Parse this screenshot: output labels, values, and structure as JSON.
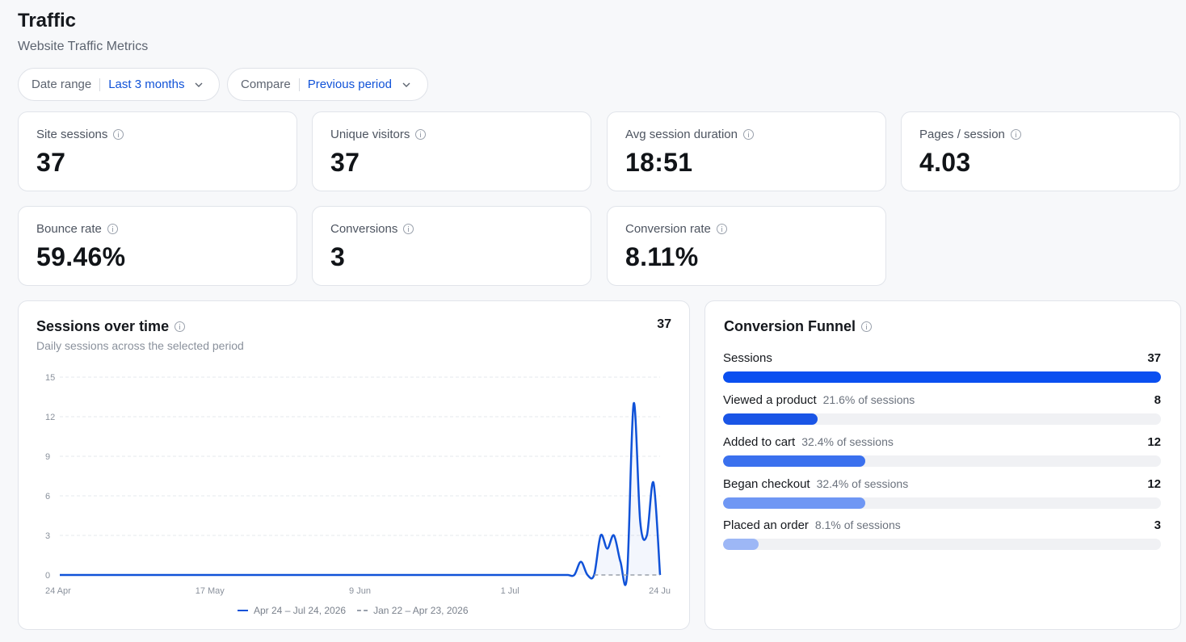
{
  "header": {
    "title": "Traffic",
    "subtitle": "Website Traffic Metrics"
  },
  "filters": {
    "date_range": {
      "label": "Date range",
      "value": "Last 3 months"
    },
    "compare": {
      "label": "Compare",
      "value": "Previous period"
    }
  },
  "stats": [
    {
      "label": "Site sessions",
      "value": "37"
    },
    {
      "label": "Unique visitors",
      "value": "37"
    },
    {
      "label": "Avg session duration",
      "value": "18:51"
    },
    {
      "label": "Pages / session",
      "value": "4.03"
    },
    {
      "label": "Bounce rate",
      "value": "59.46%"
    },
    {
      "label": "Conversions",
      "value": "3"
    },
    {
      "label": "Conversion rate",
      "value": "8.11%"
    }
  ],
  "sessions_chart": {
    "title": "Sessions over time",
    "subtitle": "Daily sessions across the selected period",
    "total": "37",
    "legend": {
      "current": "Apr 24 – Jul 24, 2026",
      "previous": "Jan 22 – Apr 23, 2026"
    }
  },
  "chart_data": {
    "type": "line",
    "title": "Sessions over time",
    "x": [
      "2026-07-12",
      "2026-07-15",
      "2026-07-16",
      "2026-07-17",
      "2026-07-18",
      "2026-07-20",
      "2026-07-21",
      "2026-07-22",
      "2026-07-23",
      "2026-07-24"
    ],
    "x_start": "2026-04-24",
    "x_end": "2026-07-24",
    "x_ticks": [
      "24 Apr",
      "17 May",
      "9 Jun",
      "1 Jul",
      "24 Ju"
    ],
    "series": [
      {
        "name": "Apr 24 – Jul 24, 2026",
        "style": "solid",
        "color": "#1052d8",
        "values": [
          1,
          3,
          2,
          3,
          1,
          13,
          4,
          3,
          7,
          0
        ]
      },
      {
        "name": "Jan 22 – Apr 23, 2026",
        "style": "dashed",
        "color": "#9aa1ac",
        "values": [
          0,
          0,
          0,
          0,
          0,
          0,
          0,
          0,
          0,
          0
        ]
      }
    ],
    "y_ticks": [
      0,
      3,
      6,
      9,
      12,
      15
    ],
    "ylim": [
      0,
      15
    ],
    "grid": true,
    "legend_position": "bottom"
  },
  "funnel": {
    "title": "Conversion Funnel",
    "steps": [
      {
        "name": "Sessions",
        "pct": "",
        "count": "37",
        "fraction": 1.0,
        "color": "#0a4ff0"
      },
      {
        "name": "Viewed a product",
        "pct": "21.6% of sessions",
        "count": "8",
        "fraction": 0.216,
        "color": "#1a55e6"
      },
      {
        "name": "Added to cart",
        "pct": "32.4% of sessions",
        "count": "12",
        "fraction": 0.324,
        "color": "#3a70ee"
      },
      {
        "name": "Began checkout",
        "pct": "32.4% of sessions",
        "count": "12",
        "fraction": 0.324,
        "color": "#6f97f4"
      },
      {
        "name": "Placed an order",
        "pct": "8.1% of sessions",
        "count": "3",
        "fraction": 0.081,
        "color": "#9db7f6"
      }
    ]
  },
  "icons": {
    "info": "info-icon",
    "chevron": "chevron-down-icon"
  }
}
